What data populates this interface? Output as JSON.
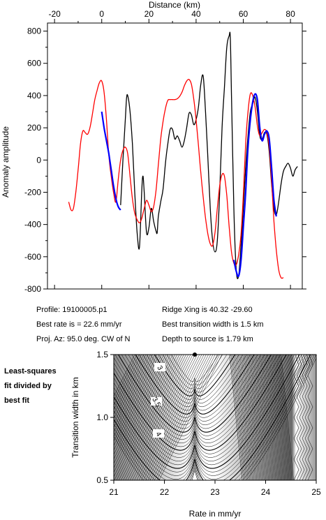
{
  "chart_data": [
    {
      "type": "line",
      "xlabel": "Distance (km)",
      "ylabel": "Anomaly amplitude",
      "xlim": [
        -23,
        85
      ],
      "ylim": [
        -800,
        850
      ],
      "x_ticks": [
        -20,
        0,
        20,
        40,
        60,
        80
      ],
      "y_ticks": [
        -800,
        -600,
        -400,
        -200,
        0,
        200,
        400,
        600,
        800
      ],
      "series": [
        {
          "color": "#000000",
          "x": [
            8,
            9,
            10,
            10.5,
            11,
            12,
            13,
            14,
            15,
            16,
            17,
            17.5,
            18,
            19,
            20,
            21,
            22,
            23,
            23.5,
            24,
            25,
            26,
            27,
            28,
            29,
            30,
            31,
            32,
            33,
            34,
            35,
            36,
            37,
            38,
            39,
            40,
            41,
            42,
            43,
            44,
            45,
            46,
            47,
            48,
            49,
            50,
            51,
            52,
            53,
            54,
            54.5,
            55,
            56,
            57,
            58,
            59,
            60,
            61,
            62,
            63,
            64,
            65,
            66,
            67,
            68,
            69,
            70,
            71,
            72,
            73,
            74,
            75,
            76,
            77,
            78,
            79,
            80,
            81,
            82,
            83
          ],
          "y": [
            -280,
            0,
            250,
            380,
            400,
            300,
            100,
            -200,
            -450,
            -540,
            -180,
            -100,
            -200,
            -450,
            -420,
            -300,
            -380,
            -440,
            -450,
            -350,
            -260,
            -180,
            -20,
            100,
            190,
            190,
            130,
            150,
            120,
            80,
            120,
            200,
            290,
            280,
            220,
            250,
            330,
            470,
            520,
            300,
            10,
            -300,
            -500,
            -570,
            -500,
            -200,
            200,
            450,
            700,
            770,
            760,
            400,
            -300,
            -680,
            -720,
            -540,
            -300,
            -50,
            150,
            300,
            350,
            390,
            300,
            150,
            130,
            170,
            160,
            50,
            -150,
            -300,
            -340,
            -260,
            -150,
            -70,
            -40,
            -20,
            -50,
            -100,
            -60,
            -40
          ]
        },
        {
          "color": "#ff0000",
          "x": [
            -14,
            -13,
            -12,
            -11,
            -10,
            -9,
            -8,
            -7,
            -6,
            -5,
            -4,
            -3,
            -2,
            -1,
            0,
            1,
            2,
            3,
            4,
            5,
            6,
            7,
            8,
            9,
            10,
            11,
            12,
            13,
            14,
            15,
            16,
            17,
            18,
            19,
            20,
            21,
            22,
            23,
            24,
            25,
            26,
            27,
            28,
            29,
            30,
            31,
            32,
            33,
            34,
            35,
            36,
            37,
            38,
            39,
            40,
            41,
            42,
            43,
            44,
            45,
            46,
            47,
            48,
            49,
            50,
            51,
            52,
            53,
            54,
            55,
            56,
            57,
            58,
            59,
            60,
            61,
            62,
            63,
            64,
            65,
            66,
            67,
            68,
            69,
            70,
            71,
            72,
            73,
            74,
            75,
            76,
            77
          ],
          "y": [
            -260,
            -310,
            -300,
            -200,
            -60,
            100,
            180,
            170,
            160,
            200,
            280,
            370,
            430,
            480,
            490,
            420,
            250,
            30,
            -100,
            -200,
            -260,
            -120,
            0,
            60,
            80,
            40,
            -100,
            -240,
            -330,
            -370,
            -390,
            -360,
            -300,
            -250,
            -280,
            -320,
            -290,
            -190,
            -30,
            130,
            240,
            320,
            370,
            375,
            375,
            375,
            380,
            395,
            420,
            460,
            490,
            500,
            470,
            380,
            250,
            90,
            -80,
            -230,
            -360,
            -460,
            -520,
            -530,
            -450,
            -300,
            -160,
            -90,
            -100,
            -220,
            -410,
            -570,
            -640,
            -650,
            -590,
            -470,
            -220,
            100,
            300,
            410,
            400,
            330,
            210,
            150,
            170,
            190,
            170,
            80,
            -130,
            -380,
            -560,
            -680,
            -730,
            -730
          ]
        },
        {
          "color": "#0000ff",
          "x": [
            0,
            1,
            2,
            3,
            4,
            5,
            6,
            7,
            8,
            56,
            57,
            58,
            59,
            60,
            61,
            62,
            63,
            64,
            65,
            66,
            67,
            68,
            69,
            70,
            71,
            72,
            73,
            74
          ],
          "y": [
            300,
            200,
            120,
            40,
            -60,
            -160,
            -240,
            -290,
            -310,
            -620,
            -690,
            -720,
            -630,
            -420,
            -200,
            80,
            250,
            360,
            410,
            370,
            200,
            120,
            160,
            180,
            130,
            -50,
            -250,
            -350
          ],
          "break_after_index": 8
        }
      ]
    },
    {
      "type": "heatmap",
      "xlabel": "Rate in mm/yr",
      "ylabel": "Transition width in km",
      "xlim": [
        21,
        25
      ],
      "ylim": [
        0.5,
        1.5
      ],
      "x_ticks": [
        21,
        22,
        23,
        24,
        25
      ],
      "y_ticks": [
        0.5,
        1.0,
        1.5
      ],
      "contour_labels": [
        "3",
        "3.5",
        "4"
      ],
      "best_fit": {
        "rate": 22.6,
        "width": 1.5
      }
    }
  ],
  "info": {
    "profile": "Profile: 19100005.p1",
    "best_rate": "Best rate is = 22.6 mm/yr",
    "proj_az": "Proj. Az: 95.0 deg. CW of N",
    "ridge_xing": "Ridge Xing is 40.32 -29.60",
    "best_width": "Best transition width is 1.5 km",
    "depth": "Depth to source is    1.79 km"
  },
  "side_label": [
    "Least-squares",
    "fit divided by",
    "best fit"
  ]
}
